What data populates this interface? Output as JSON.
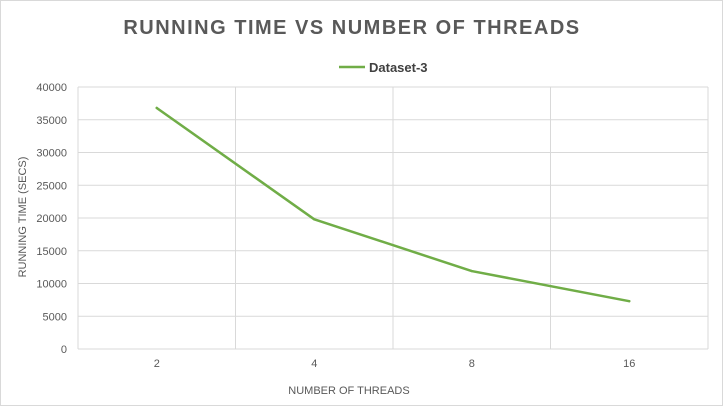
{
  "chart_data": {
    "type": "line",
    "title": "RUNNING TIME VS NUMBER OF THREADS",
    "xlabel": "NUMBER OF THREADS",
    "ylabel": "RUNNING TIME (SECS)",
    "categories": [
      "2",
      "4",
      "8",
      "16"
    ],
    "series": [
      {
        "name": "Dataset-3",
        "values": [
          36800,
          19800,
          11900,
          7300
        ],
        "color": "#70ad47"
      }
    ],
    "ylim": [
      0,
      40000
    ],
    "yticks": [
      "0",
      "5000",
      "10000",
      "15000",
      "20000",
      "25000",
      "30000",
      "35000",
      "40000"
    ],
    "grid": true,
    "legend_position": "top",
    "colors": {
      "grid": "#d9d9d9",
      "text": "#595959"
    }
  }
}
